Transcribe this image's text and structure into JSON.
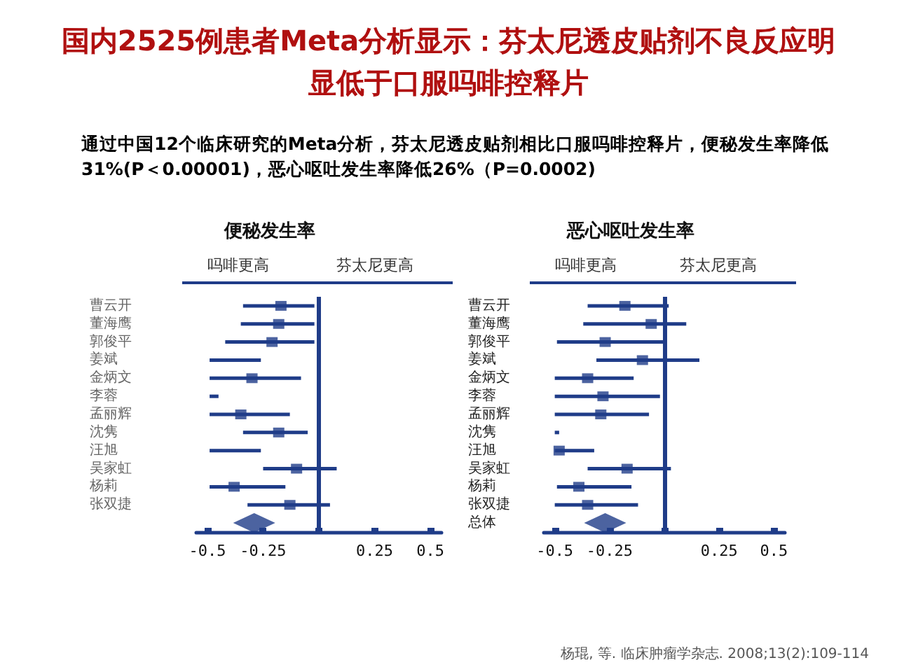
{
  "chart_data": [
    {
      "type": "scatter",
      "orientation": "horizontal",
      "title": "便秘发生率",
      "annotations": [
        "国内2525例患者Meta分析显示：芬太尼透皮贴剂不良反应明显低于口服吗啡控释片",
        "通过中国12个临床研究的Meta分析，芬太尼透皮贴剂相比口服吗啡控释片，便秘发生率降低31%(P＜0.00001)，恶心呕吐发生率降低26%（P=0.0002)",
        "吗啡更高",
        "芬太尼更高"
      ],
      "categories": [
        "曹云开",
        "董海鹰",
        "郭俊平",
        "姜斌",
        "金炳文",
        "李蓉",
        "孟丽辉",
        "沈隽",
        "汪旭",
        "吴家虹",
        "杨莉",
        "张双捷",
        null
      ],
      "series": [
        {
          "type": "bar",
          "color": "#1f3c88",
          "base": [
            -0.34,
            -0.35,
            -0.42,
            -0.49,
            -0.49,
            -0.49,
            -0.49,
            -0.34,
            -0.49,
            -0.25,
            -0.49,
            -0.32,
            null
          ],
          "values": [
            0.32,
            0.33,
            0.4,
            0.23,
            0.41,
            0.04,
            0.36,
            0.29,
            0.23,
            0.33,
            0.34,
            0.37,
            null
          ]
        },
        {
          "color": "#1f3c88",
          "marker": "square",
          "values": [
            -0.17,
            -0.18,
            -0.21,
            null,
            -0.3,
            null,
            -0.35,
            -0.18,
            null,
            -0.1,
            -0.38,
            -0.13,
            null
          ]
        },
        {
          "color": "#1f3c88",
          "marker": "diamond",
          "values": [
            null,
            null,
            null,
            null,
            null,
            null,
            null,
            null,
            null,
            null,
            null,
            null,
            -0.29
          ]
        }
      ],
      "xlim": [
        -0.55,
        0.55
      ],
      "xticks": [
        -0.5,
        -0.25,
        {
          "value": 0,
          "label": null
        },
        0.25,
        0.5
      ],
      "ref_lines": [
        {
          "axis": "x",
          "value": 0,
          "color": "#1f3c88"
        }
      ],
      "grid": false
    },
    {
      "type": "scatter",
      "orientation": "horizontal",
      "title": "恶心呕吐发生率",
      "annotations": [
        "吗啡更高",
        "芬太尼更高",
        "杨琨, 等. 临床肿瘤学杂志. 2008;13(2):109-114"
      ],
      "categories": [
        "曹云开",
        "董海鹰",
        "郭俊平",
        "姜斌",
        "金炳文",
        "李蓉",
        "孟丽辉",
        "沈隽",
        "汪旭",
        "吴家虹",
        "杨莉",
        "张双捷",
        "总体"
      ],
      "series": [
        {
          "type": "bar",
          "color": "#1f3c88",
          "base": [
            -0.35,
            -0.37,
            -0.49,
            -0.31,
            -0.5,
            -0.5,
            -0.5,
            -0.5,
            -0.5,
            -0.35,
            -0.49,
            -0.5,
            null
          ],
          "values": [
            0.37,
            0.47,
            0.49,
            0.47,
            0.36,
            0.48,
            0.43,
            0.02,
            0.18,
            0.38,
            0.34,
            0.38,
            null
          ]
        },
        {
          "color": "#1f3c88",
          "marker": "square",
          "values": [
            -0.18,
            -0.06,
            -0.27,
            -0.1,
            -0.35,
            -0.28,
            -0.29,
            null,
            -0.48,
            -0.17,
            -0.39,
            -0.35,
            null
          ]
        },
        {
          "color": "#1f3c88",
          "marker": "diamond",
          "values": [
            null,
            null,
            null,
            null,
            null,
            null,
            null,
            null,
            null,
            null,
            null,
            null,
            -0.27
          ]
        }
      ],
      "xlim": [
        -0.55,
        0.55
      ],
      "xticks": [
        -0.5,
        -0.25,
        {
          "value": 0,
          "label": null
        },
        0.25,
        0.5
      ],
      "ref_lines": [
        {
          "axis": "x",
          "value": 0,
          "color": "#1f3c88"
        }
      ],
      "grid": false
    }
  ]
}
